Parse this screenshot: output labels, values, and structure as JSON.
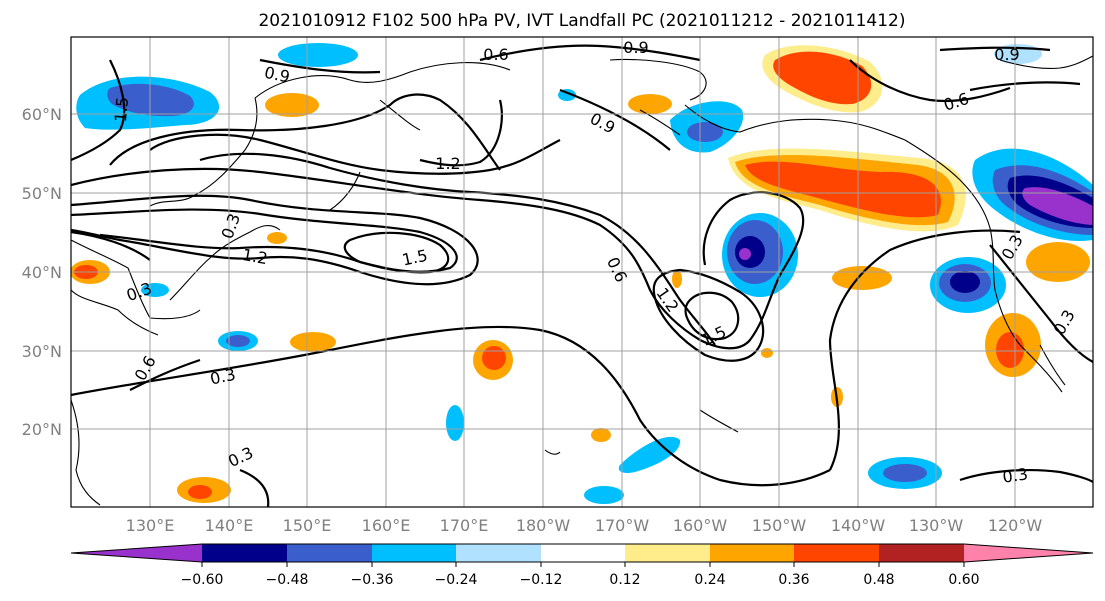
{
  "title": "2021010912 F102 500 hPa PV, IVT Landfall PC (2021011212 - 2021011412)",
  "lat_labels": [
    "60°N",
    "50°N",
    "40°N",
    "30°N",
    "20°N"
  ],
  "lon_labels": [
    "130°E",
    "140°E",
    "150°E",
    "160°E",
    "170°E",
    "180°W",
    "170°W",
    "160°W",
    "150°W",
    "140°W",
    "130°W",
    "120°W"
  ],
  "colorbar": {
    "tick_labels": [
      "−0.60",
      "−0.48",
      "−0.36",
      "−0.24",
      "−0.12",
      "0.12",
      "0.24",
      "0.36",
      "0.48",
      "0.60"
    ],
    "colors": [
      "#9932cc",
      "#00008b",
      "#3a5fcd",
      "#00bfff",
      "#b0e2ff",
      "#ffffff",
      "#ffec8b",
      "#ffa500",
      "#ff4500",
      "#b22222",
      "#ff82ab"
    ]
  },
  "contour_labels": [
    "0.6",
    "0.9",
    "0.9",
    "0.9",
    "0.9",
    "0.6",
    "1.5",
    "1.2",
    "1.5",
    "0.6",
    "1.2",
    "1.5",
    "0.3",
    "0.3",
    "0.3",
    "0.6",
    "0.3",
    "0.3",
    "0.3",
    "1.2",
    "0.3"
  ]
}
